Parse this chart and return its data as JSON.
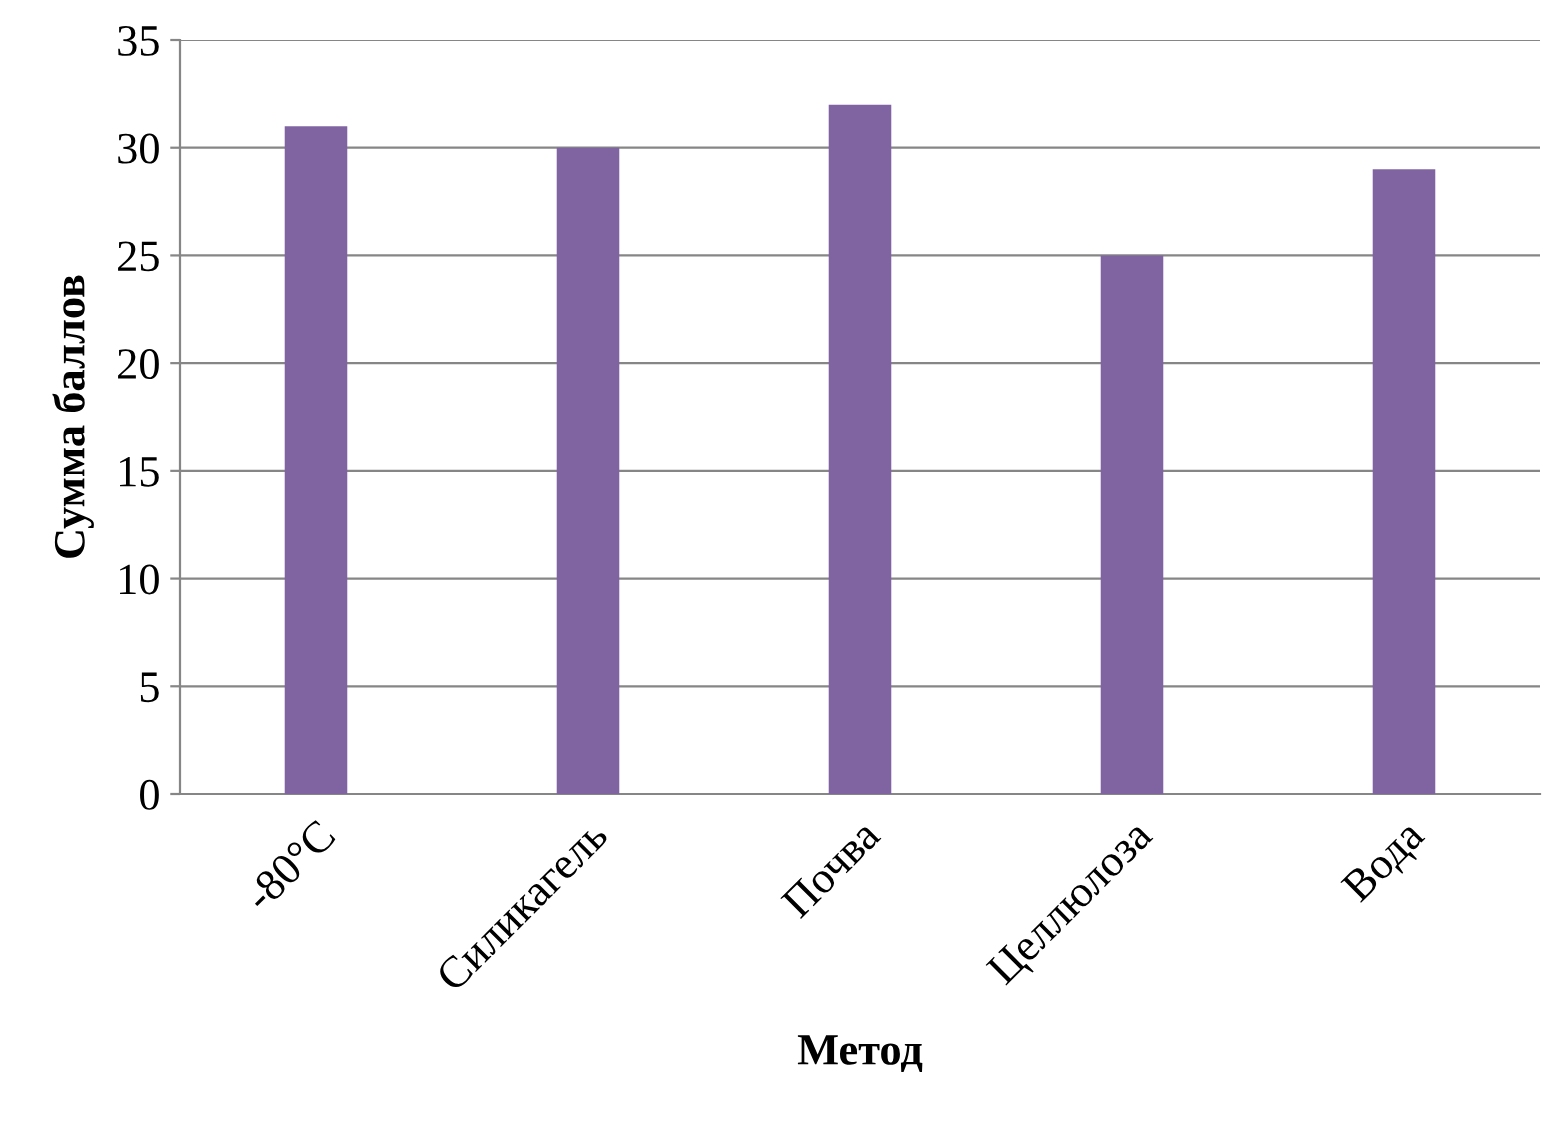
{
  "chart_data": {
    "type": "bar",
    "xlabel": "Метод",
    "ylabel": "Сумма баллов",
    "categories": [
      "-80°C",
      "Силикагель",
      "Почва",
      "Целлюлоза",
      "Вода"
    ],
    "values": [
      31,
      30,
      32,
      25,
      29
    ],
    "color": "#8064a2",
    "ylim": [
      0,
      35
    ],
    "yticks": [
      0,
      5,
      10,
      15,
      20,
      25,
      30,
      35
    ],
    "grid": "y"
  }
}
